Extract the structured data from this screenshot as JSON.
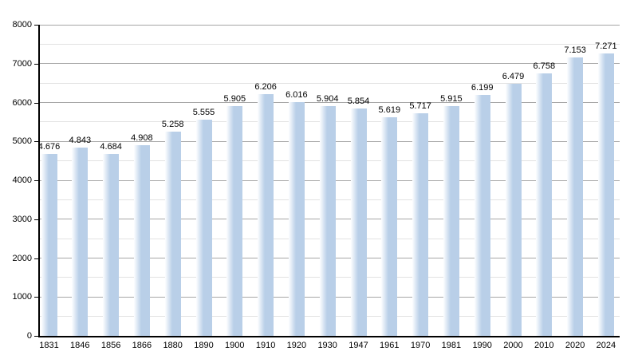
{
  "chart_data": {
    "type": "bar",
    "title": "",
    "xlabel": "",
    "ylabel": "",
    "categories": [
      "1831",
      "1846",
      "1856",
      "1866",
      "1880",
      "1890",
      "1900",
      "1910",
      "1920",
      "1930",
      "1947",
      "1961",
      "1970",
      "1981",
      "1990",
      "2000",
      "2010",
      "2020",
      "2024"
    ],
    "values": [
      4676,
      4843,
      4684,
      4908,
      5258,
      5555,
      5905,
      6206,
      6016,
      5904,
      5854,
      5619,
      5717,
      5915,
      6199,
      6479,
      6758,
      7153,
      7271
    ],
    "value_labels": [
      "4.676",
      "4.843",
      "4.684",
      "4.908",
      "5.258",
      "5.555",
      "5.905",
      "6.206",
      "6.016",
      "5.904",
      "5.854",
      "5.619",
      "5.717",
      "5.915",
      "6.199",
      "6.479",
      "6.758",
      "7.153",
      "7.271"
    ],
    "ylim": [
      0,
      8000
    ],
    "yticks": [
      0,
      1000,
      2000,
      3000,
      4000,
      5000,
      6000,
      7000,
      8000
    ],
    "ytick_labels": [
      "0",
      "1000",
      "2000",
      "3000",
      "4000",
      "5000",
      "6000",
      "7000",
      "8000"
    ],
    "minor_gridline_step": 500,
    "grid": true,
    "legend": false,
    "colors": {
      "bar_fill": "#b9cfe8",
      "bar_fill_gradient_start": "#fdfeff",
      "gridline_major": "#a6a6a6",
      "gridline_minor": "#e2e2e2",
      "axis": "#000000",
      "text": "#000000",
      "background": "#ffffff"
    }
  }
}
